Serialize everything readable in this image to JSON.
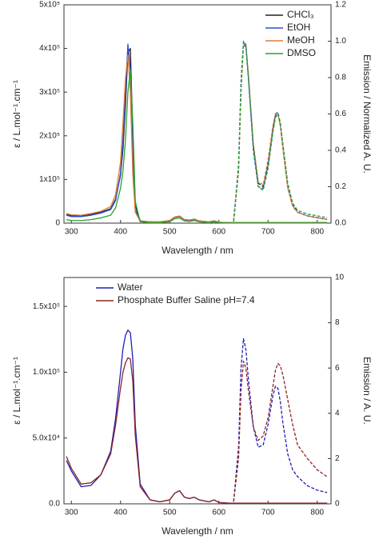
{
  "chart_data": [
    {
      "type": "line",
      "xlabel": "Wavelength / nm",
      "ylabel": "ε / L.mol⁻¹.cm⁻¹",
      "y2label": "Emission / Normalized A. U.",
      "legend": "upper right",
      "x": [
        290,
        300,
        320,
        340,
        360,
        380,
        390,
        400,
        405,
        410,
        415,
        420,
        425,
        430,
        440,
        460,
        480,
        500,
        510,
        520,
        530,
        540,
        550,
        560,
        580,
        590,
        600,
        620,
        630,
        640,
        645,
        650,
        655,
        660,
        670,
        680,
        690,
        700,
        710,
        715,
        720,
        725,
        730,
        740,
        750,
        760,
        780,
        800,
        820
      ],
      "xlim": [
        285,
        828
      ],
      "xticks": [
        300,
        400,
        500,
        600,
        700,
        800
      ],
      "ylim": [
        0,
        500000
      ],
      "yticks": [
        0,
        {
          "value": 100000,
          "label": "1x10⁵"
        },
        {
          "value": 200000,
          "label": "2x10⁵"
        },
        {
          "value": 300000,
          "label": "3x10⁵"
        },
        {
          "value": 400000,
          "label": "4x10⁵"
        },
        {
          "value": 500000,
          "label": "5x10⁵"
        }
      ],
      "y2lim": [
        0,
        1.2
      ],
      "y2ticks": [
        {
          "value": 0,
          "label": "0.0"
        },
        0.2,
        0.4,
        0.6,
        0.8,
        {
          "value": 1,
          "label": "1.0"
        },
        1.2
      ],
      "series": [
        {
          "name": "CHCl₃",
          "color": "#222222",
          "values": [
            20000,
            17000,
            16000,
            20000,
            25000,
            33000,
            55000,
            110000,
            170000,
            270000,
            390000,
            400000,
            200000,
            40000,
            5000,
            3000,
            3000,
            6000,
            14000,
            16000,
            8000,
            7000,
            9000,
            5000,
            3000,
            5000,
            2000,
            1000,
            1000,
            1000,
            1000,
            1000,
            1000,
            1000,
            1000,
            1000,
            1000,
            1000,
            1000,
            1000,
            1000,
            1000,
            1000,
            1000,
            1000,
            1000,
            1000,
            1000,
            1000
          ]
        },
        {
          "name": "EtOH",
          "color": "#2b4fd8",
          "values": [
            18000,
            15000,
            15000,
            18000,
            23000,
            31000,
            52000,
            115000,
            190000,
            300000,
            410000,
            350000,
            150000,
            30000,
            4000,
            2000,
            2000,
            5000,
            13000,
            15000,
            7000,
            6000,
            8000,
            5000,
            2000,
            4000,
            1000,
            1000,
            1000,
            1000,
            1000,
            1000,
            1000,
            1000,
            1000,
            1000,
            1000,
            1000,
            1000,
            1000,
            1000,
            1000,
            1000,
            1000,
            1000,
            1000,
            1000,
            1000,
            1000
          ]
        },
        {
          "name": "MeOH",
          "color": "#e07b39",
          "values": [
            22000,
            19000,
            18000,
            22000,
            27000,
            38000,
            65000,
            140000,
            230000,
            330000,
            385000,
            300000,
            110000,
            25000,
            4000,
            3000,
            3000,
            6000,
            14000,
            15000,
            8000,
            7000,
            8000,
            5000,
            3000,
            4000,
            2000,
            1000,
            1000,
            1000,
            1000,
            1000,
            1000,
            1000,
            1000,
            1000,
            1000,
            1000,
            1000,
            1000,
            1000,
            1000,
            1000,
            1000,
            1000,
            1000,
            1000,
            1000,
            1000
          ]
        },
        {
          "name": "DMSO",
          "color": "#2ca02c",
          "values": [
            8000,
            6000,
            6000,
            8000,
            12000,
            18000,
            35000,
            80000,
            120000,
            190000,
            300000,
            350000,
            230000,
            50000,
            3000,
            1000,
            1000,
            3000,
            10000,
            12000,
            5000,
            4000,
            6000,
            3000,
            1000,
            3000,
            1000,
            500,
            500,
            500,
            500,
            500,
            500,
            500,
            500,
            500,
            500,
            500,
            500,
            500,
            500,
            500,
            500,
            500,
            500,
            500,
            500,
            500,
            500
          ]
        },
        {
          "color": "#222222",
          "axis": "y2",
          "style": "dashed",
          "values": [
            null,
            null,
            null,
            null,
            null,
            null,
            null,
            null,
            null,
            null,
            null,
            null,
            null,
            null,
            null,
            null,
            null,
            null,
            null,
            null,
            null,
            null,
            null,
            null,
            null,
            null,
            null,
            null,
            0.01,
            0.3,
            0.75,
            0.98,
            0.97,
            0.8,
            0.42,
            0.22,
            0.2,
            0.33,
            0.52,
            0.59,
            0.6,
            0.54,
            0.42,
            0.2,
            0.1,
            0.06,
            0.04,
            0.03,
            0.02
          ]
        },
        {
          "color": "#2b4fd8",
          "axis": "y2",
          "style": "dashed",
          "values": [
            null,
            null,
            null,
            null,
            null,
            null,
            null,
            null,
            null,
            null,
            null,
            null,
            null,
            null,
            null,
            null,
            null,
            null,
            null,
            null,
            null,
            null,
            null,
            null,
            null,
            null,
            null,
            null,
            0.01,
            0.32,
            0.78,
            1.0,
            0.98,
            0.8,
            0.4,
            0.2,
            0.19,
            0.32,
            0.52,
            0.6,
            0.61,
            0.55,
            0.43,
            0.21,
            0.1,
            0.06,
            0.04,
            0.03,
            0.02
          ]
        },
        {
          "color": "#e07b39",
          "axis": "y2",
          "style": "dashed",
          "values": [
            null,
            null,
            null,
            null,
            null,
            null,
            null,
            null,
            null,
            null,
            null,
            null,
            null,
            null,
            null,
            null,
            null,
            null,
            null,
            null,
            null,
            null,
            null,
            null,
            null,
            null,
            null,
            null,
            0.01,
            0.28,
            0.72,
            0.99,
            0.98,
            0.82,
            0.44,
            0.23,
            0.21,
            0.35,
            0.54,
            0.6,
            0.6,
            0.53,
            0.41,
            0.19,
            0.09,
            0.06,
            0.04,
            0.03,
            0.02
          ]
        },
        {
          "color": "#2ca02c",
          "axis": "y2",
          "style": "dashed",
          "values": [
            null,
            null,
            null,
            null,
            null,
            null,
            null,
            null,
            null,
            null,
            null,
            null,
            null,
            null,
            null,
            null,
            null,
            null,
            null,
            null,
            null,
            null,
            null,
            null,
            null,
            null,
            null,
            null,
            0.01,
            0.3,
            0.74,
            0.99,
            0.97,
            0.81,
            0.43,
            0.2,
            0.18,
            0.3,
            0.5,
            0.58,
            0.6,
            0.55,
            0.44,
            0.22,
            0.11,
            0.07,
            0.05,
            0.04,
            0.03
          ]
        }
      ]
    },
    {
      "type": "line",
      "xlabel": "Wavelength / nm",
      "ylabel": "ε / L.mol⁻¹.cm⁻¹",
      "y2label": "Emission / A. U.",
      "legend": "upper center",
      "x": [
        290,
        300,
        320,
        340,
        360,
        380,
        390,
        400,
        405,
        410,
        415,
        420,
        425,
        430,
        440,
        460,
        480,
        500,
        510,
        520,
        530,
        540,
        550,
        560,
        580,
        590,
        600,
        620,
        630,
        640,
        645,
        650,
        655,
        660,
        670,
        680,
        690,
        700,
        710,
        715,
        720,
        725,
        730,
        740,
        750,
        760,
        780,
        800,
        820
      ],
      "xlim": [
        285,
        828
      ],
      "xticks": [
        300,
        400,
        500,
        600,
        700,
        800
      ],
      "ylim": [
        0,
        172000
      ],
      "yticks": [
        {
          "value": 0,
          "label": "0.0"
        },
        {
          "value": 50000,
          "label": "5.0x10⁴"
        },
        {
          "value": 100000,
          "label": "1.0x10⁵"
        },
        {
          "value": 150000,
          "label": "1.5x10⁵"
        }
      ],
      "y2lim": [
        0,
        10
      ],
      "y2ticks": [
        0,
        2,
        4,
        6,
        8,
        10
      ],
      "series": [
        {
          "name": "Water",
          "color": "#1f1fb4",
          "values": [
            33000,
            25000,
            13000,
            14000,
            22000,
            40000,
            65000,
            100000,
            118000,
            128000,
            132000,
            130000,
            110000,
            60000,
            15000,
            3000,
            1500,
            3000,
            8000,
            10000,
            5000,
            4000,
            5000,
            3000,
            1500,
            3000,
            1000,
            500,
            500,
            500,
            500,
            500,
            500,
            500,
            500,
            500,
            500,
            500,
            500,
            500,
            500,
            500,
            500,
            500,
            500,
            500,
            500,
            500,
            500
          ]
        },
        {
          "name": "Phosphate Buffer Saline pH=7.4",
          "color": "#8b2525",
          "values": [
            36000,
            27000,
            15000,
            16000,
            22000,
            38000,
            60000,
            88000,
            100000,
            107000,
            111000,
            110000,
            93000,
            52000,
            13000,
            3000,
            1500,
            3000,
            8000,
            10000,
            5000,
            4000,
            5000,
            3000,
            1500,
            3000,
            1000,
            500,
            500,
            500,
            500,
            500,
            500,
            500,
            500,
            500,
            500,
            500,
            500,
            500,
            500,
            500,
            500,
            500,
            500,
            500,
            500,
            500,
            500
          ]
        },
        {
          "color": "#1f1fb4",
          "axis": "y2",
          "style": "dashed",
          "values": [
            null,
            null,
            null,
            null,
            null,
            null,
            null,
            null,
            null,
            null,
            null,
            null,
            null,
            null,
            null,
            null,
            null,
            null,
            null,
            null,
            null,
            null,
            null,
            null,
            null,
            null,
            null,
            null,
            0.1,
            2.5,
            6.0,
            7.3,
            6.8,
            5.5,
            3.4,
            2.5,
            2.6,
            3.5,
            4.8,
            5.2,
            5.1,
            4.5,
            3.6,
            2.2,
            1.5,
            1.2,
            0.8,
            0.6,
            0.5
          ]
        },
        {
          "color": "#8b2525",
          "axis": "y2",
          "style": "dashed",
          "values": [
            null,
            null,
            null,
            null,
            null,
            null,
            null,
            null,
            null,
            null,
            null,
            null,
            null,
            null,
            null,
            null,
            null,
            null,
            null,
            null,
            null,
            null,
            null,
            null,
            null,
            null,
            null,
            null,
            0.1,
            2.0,
            5.0,
            6.3,
            6.0,
            5.0,
            3.4,
            2.8,
            3.0,
            3.8,
            5.2,
            5.9,
            6.2,
            6.1,
            5.7,
            4.6,
            3.5,
            2.6,
            2.0,
            1.5,
            1.2
          ]
        }
      ]
    }
  ]
}
